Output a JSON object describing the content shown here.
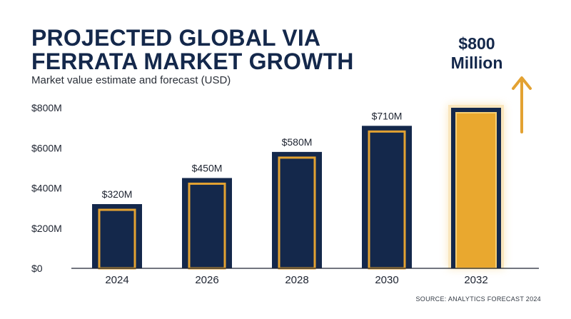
{
  "title_lines": [
    "PROJECTED GLOBAL VIA",
    "FERRATA MARKET GROWTH"
  ],
  "subtitle": "Market value estimate and forecast (USD)",
  "source": "SOURCE: ANALYTICS FORECAST 2024",
  "highlight": {
    "value_line": "$800",
    "unit_line": "Million",
    "arrow_icon": "up-arrow-icon"
  },
  "colors": {
    "navy": "#14284b",
    "gold": "#e3a232",
    "gold_light": "#f1b945"
  },
  "chart_data": {
    "type": "bar",
    "title": "PROJECTED GLOBAL VIA FERRATA MARKET GROWTH",
    "subtitle": "Market value estimate and forecast (USD)",
    "categories": [
      "2024",
      "2026",
      "2028",
      "2030",
      "2032"
    ],
    "values": [
      320,
      450,
      580,
      710,
      800
    ],
    "value_labels": [
      "$320M",
      "$450M",
      "$580M",
      "$710M",
      ""
    ],
    "unit": "USD millions",
    "ylim": [
      0,
      800
    ],
    "yticks": [
      0,
      200,
      400,
      600,
      800
    ],
    "ytick_labels": [
      "$0",
      "$200M",
      "$400M",
      "$600M",
      "$800M"
    ],
    "highlighted_category": "2032",
    "grid": false,
    "legend": "none"
  }
}
